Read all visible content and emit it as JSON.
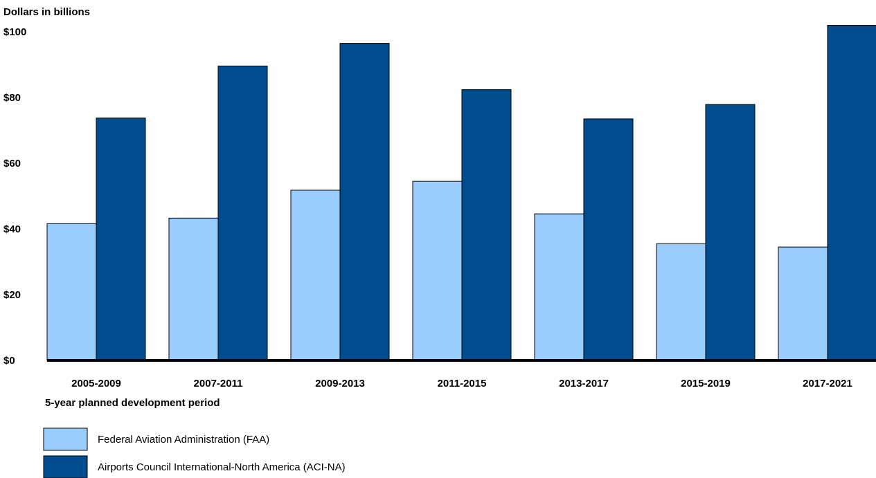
{
  "chart_data": {
    "type": "bar",
    "title": "",
    "ylabel": "Dollars in billions",
    "xlabel": "5-year planned development period",
    "ylim": [
      0,
      103
    ],
    "yticks": [
      {
        "value": 0,
        "label": "$0"
      },
      {
        "value": 20,
        "label": "$20"
      },
      {
        "value": 40,
        "label": "$40"
      },
      {
        "value": 60,
        "label": "$60"
      },
      {
        "value": 80,
        "label": "$80"
      },
      {
        "value": 100,
        "label": "$100"
      }
    ],
    "grid": false,
    "legend_position": "bottom-left",
    "categories": [
      "2005-2009",
      "2007-2011",
      "2009-2013",
      "2011-2015",
      "2013-2017",
      "2015-2019",
      "2017-2021"
    ],
    "series": [
      {
        "name": "Federal Aviation Administration (FAA)",
        "color": "#99ccff",
        "values": [
          41.6,
          43.3,
          51.8,
          54.5,
          44.6,
          35.5,
          34.5
        ]
      },
      {
        "name": "Airports Council International-North America (ACI-NA)",
        "color": "#004c8c",
        "values": [
          73.8,
          89.6,
          96.5,
          82.4,
          73.5,
          77.9,
          102
        ]
      }
    ]
  }
}
